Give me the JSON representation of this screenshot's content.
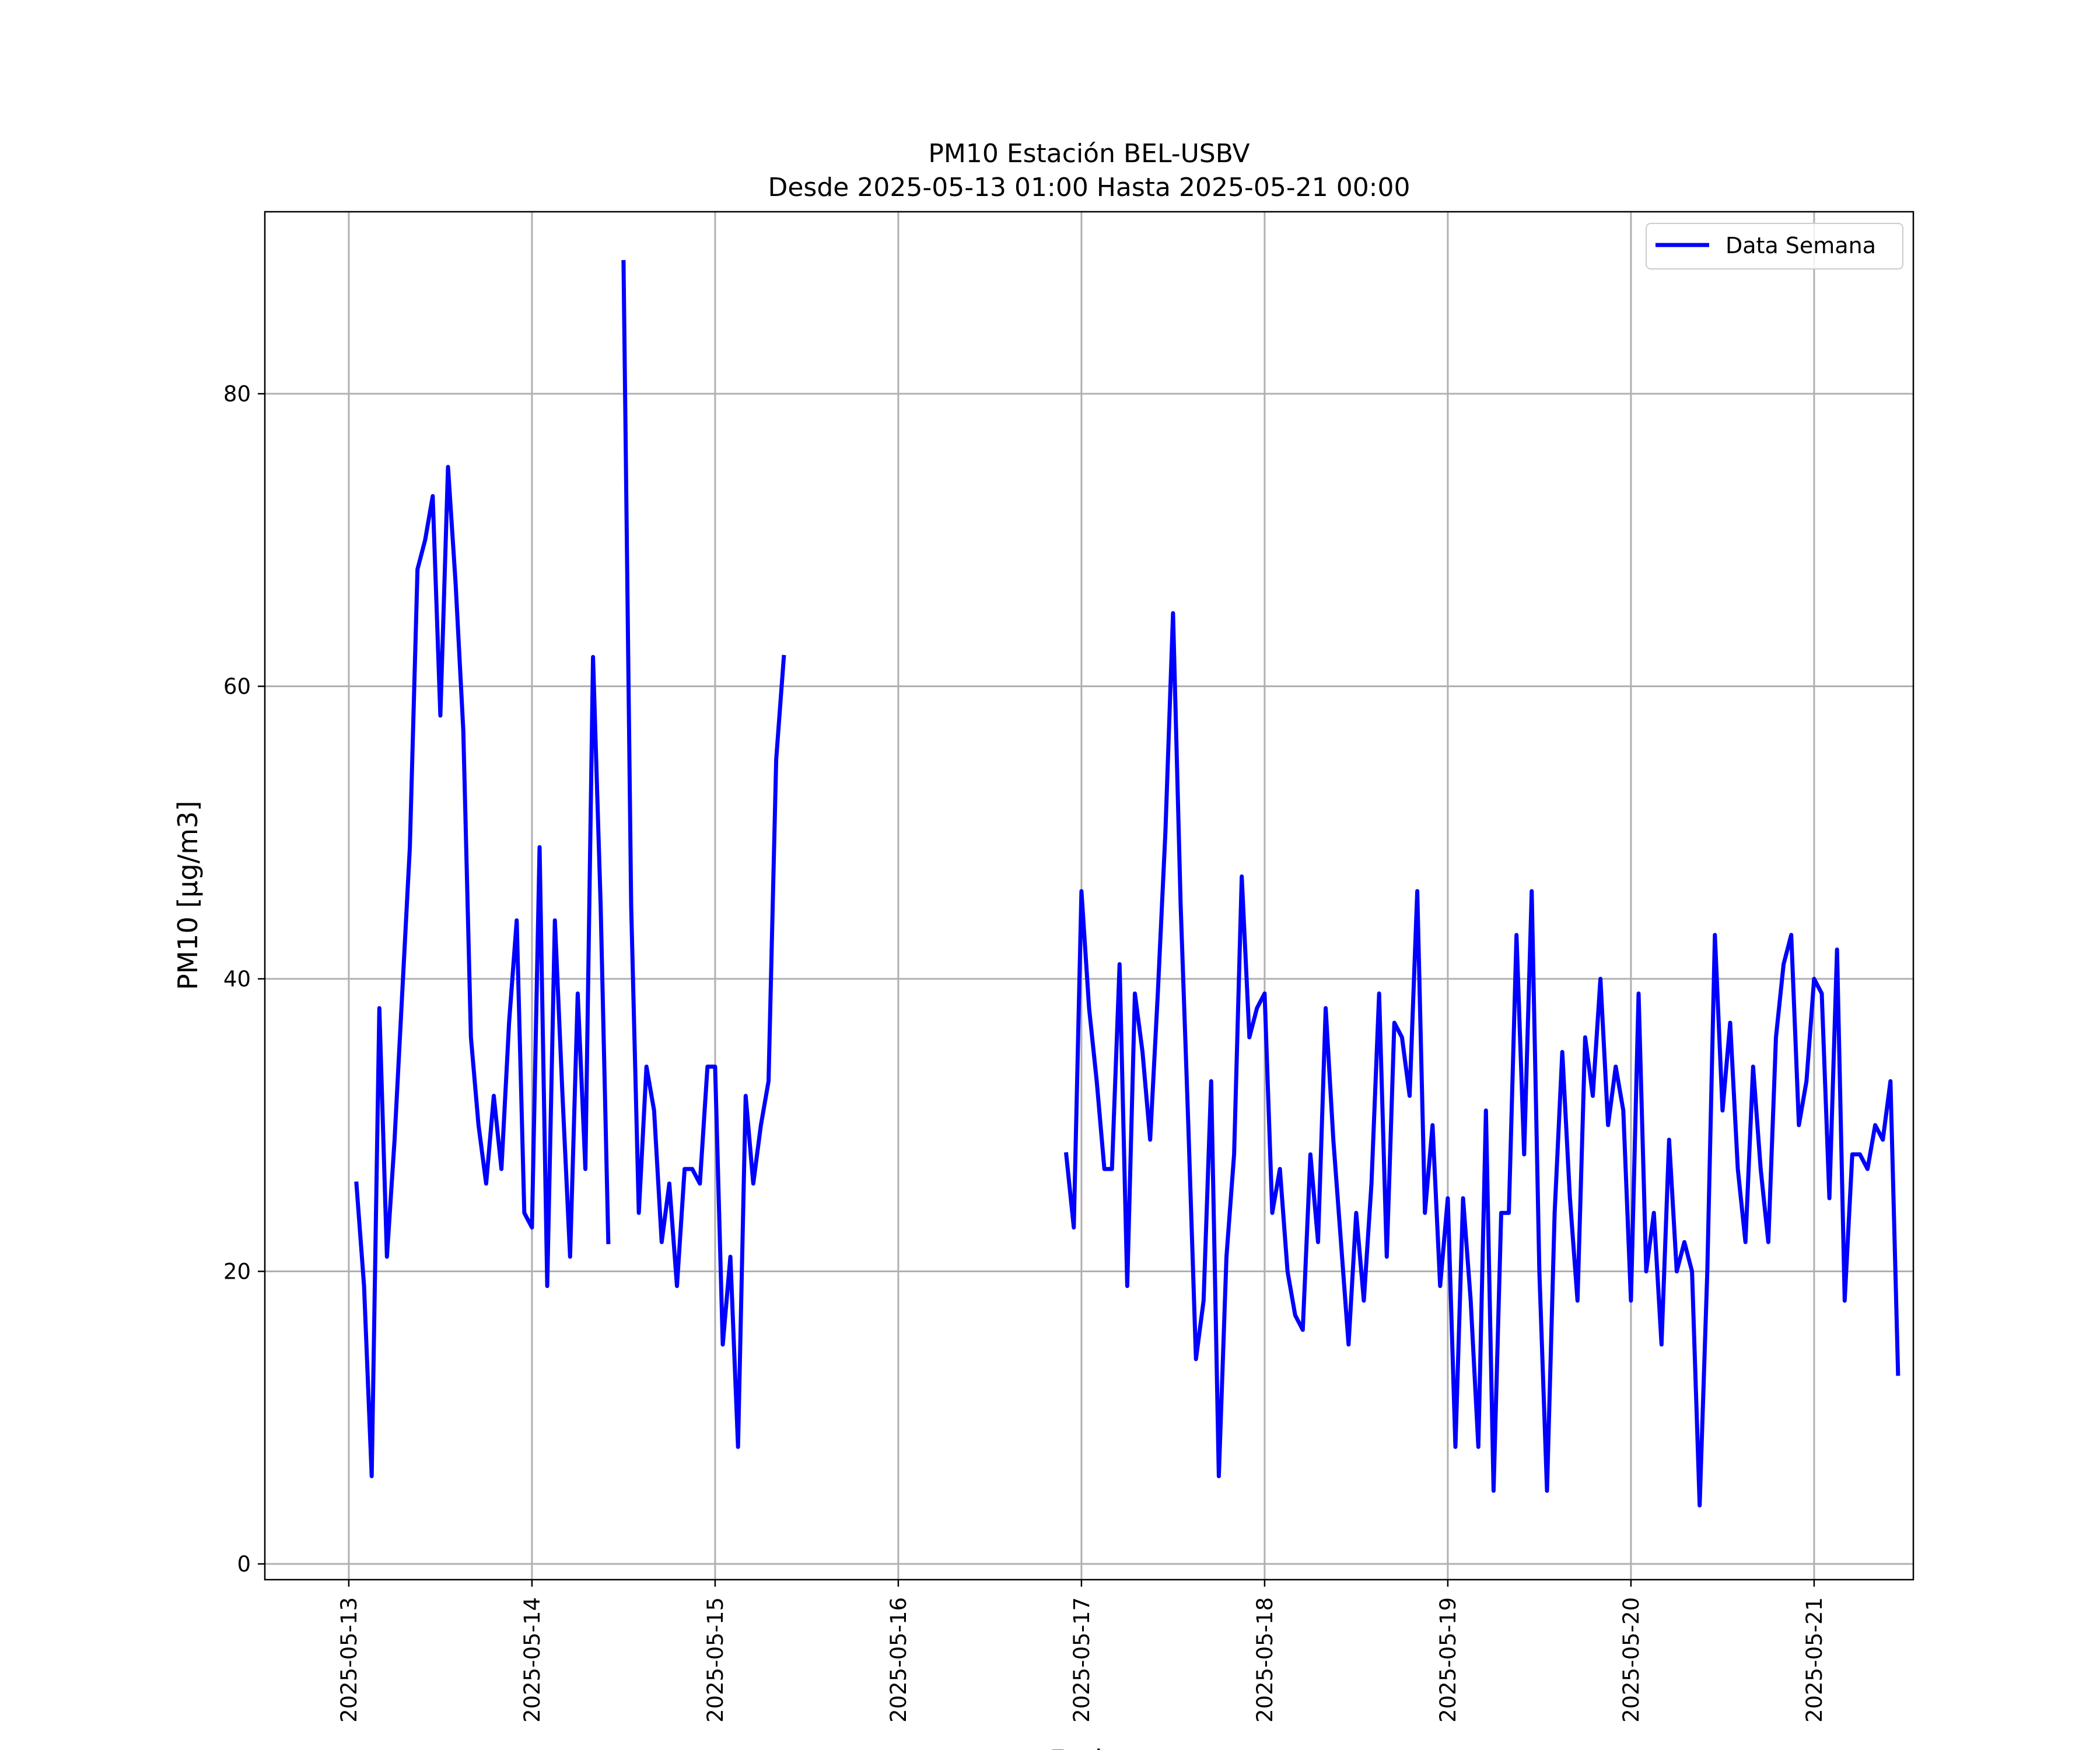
{
  "chart_data": {
    "type": "line",
    "title": "PM10 Estación BEL-USBV",
    "subtitle": "Desde 2025-05-13 01:00 Hasta 2025-05-21 00:00",
    "xlabel": "Fecha",
    "ylabel": "PM10 [µg/m3]",
    "xlim": [
      "2025-05-12 13:00",
      "2025-05-21 13:00"
    ],
    "ylim": [
      0,
      92
    ],
    "x_ticks": [
      "2025-05-13",
      "2025-05-14",
      "2025-05-15",
      "2025-05-16",
      "2025-05-17",
      "2025-05-18",
      "2025-05-19",
      "2025-05-20",
      "2025-05-21"
    ],
    "y_ticks": [
      0,
      20,
      40,
      60,
      80
    ],
    "grid": true,
    "legend_position": "top-right",
    "colors": {
      "line": "#0000ff",
      "grid": "#b0b0b0"
    },
    "series": [
      {
        "name": "Data Semana",
        "x_start": "2025-05-13 01:00",
        "x_step_hours": 1,
        "values": [
          26,
          19,
          6,
          38,
          21,
          29,
          39,
          49,
          68,
          70,
          73,
          58,
          75,
          67,
          57,
          36,
          30,
          26,
          32,
          27,
          37,
          44,
          24,
          23,
          49,
          19,
          44,
          32,
          21,
          39,
          27,
          62,
          45,
          22,
          null,
          89,
          45,
          24,
          34,
          31,
          22,
          26,
          19,
          27,
          27,
          26,
          34,
          34,
          15,
          21,
          8,
          32,
          26,
          30,
          33,
          55,
          62,
          null,
          null,
          null,
          null,
          null,
          null,
          null,
          null,
          null,
          null,
          null,
          null,
          null,
          null,
          null,
          null,
          null,
          null,
          null,
          null,
          null,
          null,
          null,
          null,
          null,
          null,
          null,
          null,
          null,
          null,
          null,
          null,
          null,
          null,
          null,
          null,
          28,
          23,
          46,
          38,
          33,
          27,
          27,
          41,
          19,
          39,
          35,
          29,
          39,
          50,
          65,
          45,
          30,
          14,
          18,
          33,
          6,
          21,
          28,
          47,
          36,
          38,
          39,
          24,
          27,
          20,
          17,
          16,
          28,
          22,
          38,
          29,
          22,
          15,
          24,
          18,
          26,
          39,
          21,
          37,
          36,
          32,
          46,
          24,
          30,
          19,
          25,
          8,
          25,
          18,
          8,
          31,
          5,
          24,
          24,
          43,
          28,
          46,
          20,
          5,
          24,
          35,
          25,
          18,
          36,
          32,
          40,
          30,
          34,
          31,
          18,
          39,
          20,
          24,
          15,
          29,
          20,
          22,
          20,
          4,
          20,
          43,
          31,
          37,
          27,
          22,
          34,
          27,
          22,
          36,
          41,
          43,
          30,
          33,
          40,
          39,
          25,
          42,
          18,
          28,
          28,
          27,
          30,
          29,
          33,
          13
        ]
      }
    ]
  }
}
